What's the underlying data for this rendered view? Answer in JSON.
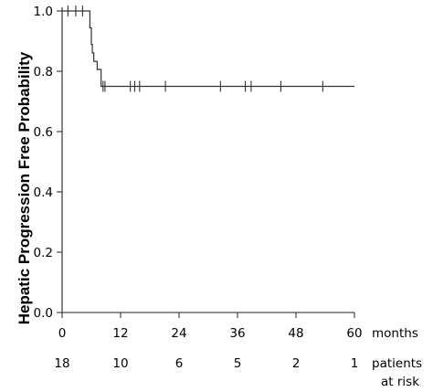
{
  "chart_data": {
    "type": "line",
    "subtype": "kaplan-meier",
    "ylabel": "Hepatic Progression Free Probability",
    "xlabel": "months",
    "xlim": [
      0,
      60
    ],
    "ylim": [
      0.0,
      1.0
    ],
    "x_ticks": [
      "0",
      "12",
      "24",
      "36",
      "48",
      "60"
    ],
    "x_tick_values": [
      0,
      12,
      24,
      36,
      48,
      60
    ],
    "y_ticks": [
      "0.0",
      "0.2",
      "0.4",
      "0.6",
      "0.8",
      "1.0"
    ],
    "y_tick_values": [
      0.0,
      0.2,
      0.4,
      0.6,
      0.8,
      1.0
    ],
    "grid": false,
    "series": [
      {
        "steps": [
          {
            "x": 0,
            "y": 1.0
          },
          {
            "x": 5.7,
            "y": 0.944
          },
          {
            "x": 6.0,
            "y": 0.889
          },
          {
            "x": 6.2,
            "y": 0.861
          },
          {
            "x": 6.5,
            "y": 0.833
          },
          {
            "x": 7.2,
            "y": 0.806
          },
          {
            "x": 8.0,
            "y": 0.75
          },
          {
            "x": 60,
            "y": 0.75
          }
        ],
        "censored": [
          {
            "x": 1.2,
            "y": 1.0
          },
          {
            "x": 2.8,
            "y": 1.0
          },
          {
            "x": 4.2,
            "y": 1.0
          },
          {
            "x": 8.4,
            "y": 0.75
          },
          {
            "x": 8.8,
            "y": 0.75
          },
          {
            "x": 14.0,
            "y": 0.75
          },
          {
            "x": 14.9,
            "y": 0.75
          },
          {
            "x": 15.9,
            "y": 0.75
          },
          {
            "x": 21.2,
            "y": 0.75
          },
          {
            "x": 32.5,
            "y": 0.75
          },
          {
            "x": 37.6,
            "y": 0.75
          },
          {
            "x": 38.8,
            "y": 0.75
          },
          {
            "x": 44.9,
            "y": 0.75
          },
          {
            "x": 53.5,
            "y": 0.75
          }
        ]
      }
    ],
    "risk_table": {
      "label_line1": "patients",
      "label_line2": "at risk",
      "values": [
        "18",
        "10",
        "6",
        "5",
        "2",
        "1"
      ]
    }
  }
}
